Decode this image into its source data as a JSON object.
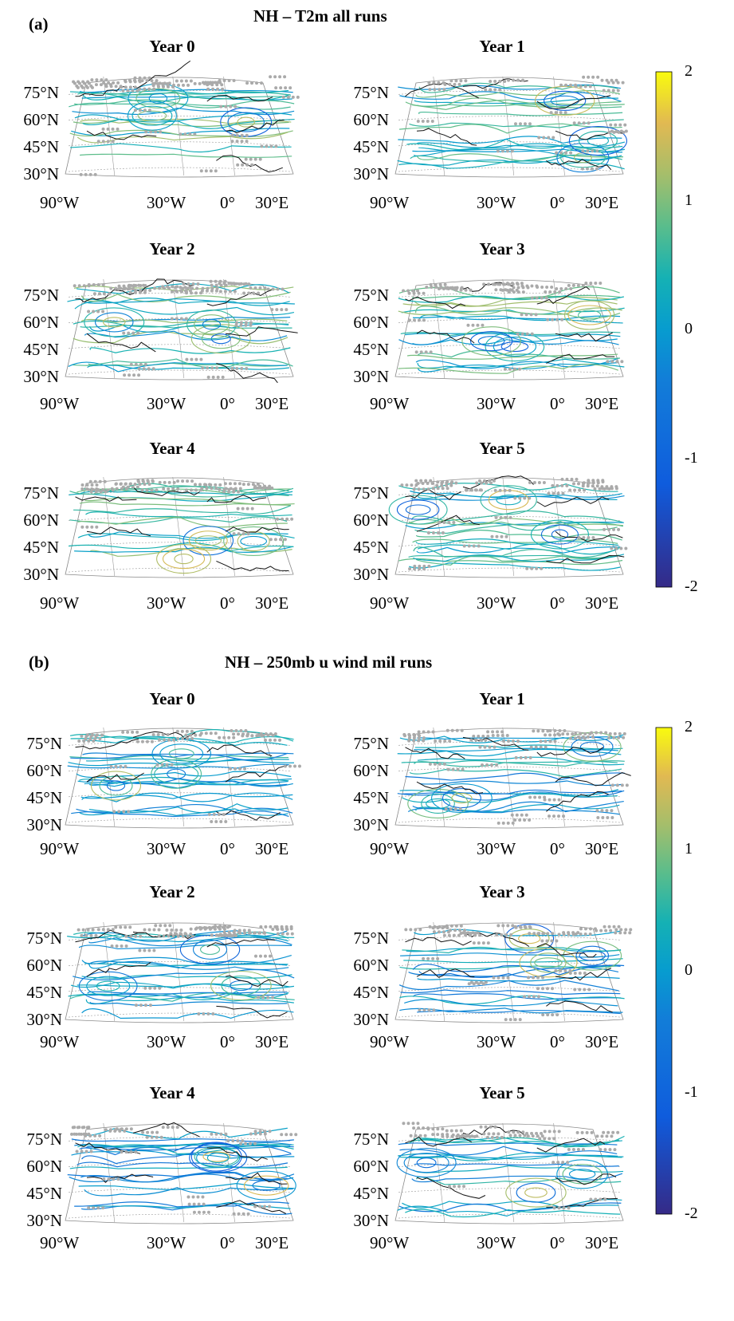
{
  "chart_data": [
    {
      "type": "contour",
      "panel_label": "(a)",
      "title": "NH – T2m all runs",
      "subplot_titles": [
        "Year 0",
        "Year 1",
        "Year 2",
        "Year 3",
        "Year 4",
        "Year 5"
      ],
      "lat_ticks": [
        "75°N",
        "60°N",
        "45°N",
        "30°N"
      ],
      "lon_ticks": [
        "90°W",
        "30°W",
        "0°",
        "30°E"
      ],
      "colorbar": {
        "ticks": [
          "2",
          "1",
          "0",
          "-1",
          "-2"
        ],
        "range": [
          -2,
          2
        ],
        "colormap": "parula"
      }
    },
    {
      "type": "contour",
      "panel_label": "(b)",
      "title": "NH – 250mb u wind mil runs",
      "subplot_titles": [
        "Year 0",
        "Year 1",
        "Year 2",
        "Year 3",
        "Year 4",
        "Year 5"
      ],
      "lat_ticks": [
        "75°N",
        "60°N",
        "45°N",
        "30°N"
      ],
      "lon_ticks": [
        "90°W",
        "30°W",
        "0°",
        "30°E"
      ],
      "colorbar": {
        "ticks": [
          "2",
          "1",
          "0",
          "-1",
          "-2"
        ],
        "range": [
          -2,
          2
        ],
        "colormap": "parula"
      }
    }
  ]
}
